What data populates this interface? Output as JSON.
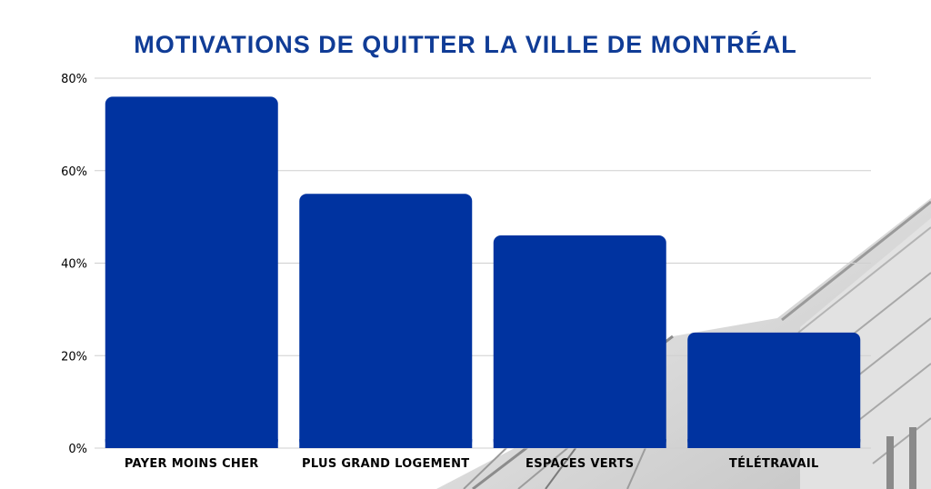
{
  "colors": {
    "title": "#103c96",
    "bar": "#0033a0",
    "grid": "#cfcfcf"
  },
  "chart_data": {
    "type": "bar",
    "title": "MOTIVATIONS DE QUITTER LA VILLE DE MONTRÉAL",
    "xlabel": "",
    "ylabel": "",
    "categories": [
      "PAYER MOINS CHER",
      "PLUS GRAND LOGEMENT",
      "ESPACES VERTS",
      "TÉLÉTRAVAIL"
    ],
    "values": [
      76,
      55,
      46,
      25
    ],
    "unit": "%",
    "ylim": [
      0,
      80
    ],
    "yticks": [
      "0%",
      "20%",
      "40%",
      "60%",
      "80%"
    ],
    "grid": true,
    "legend": "none"
  }
}
